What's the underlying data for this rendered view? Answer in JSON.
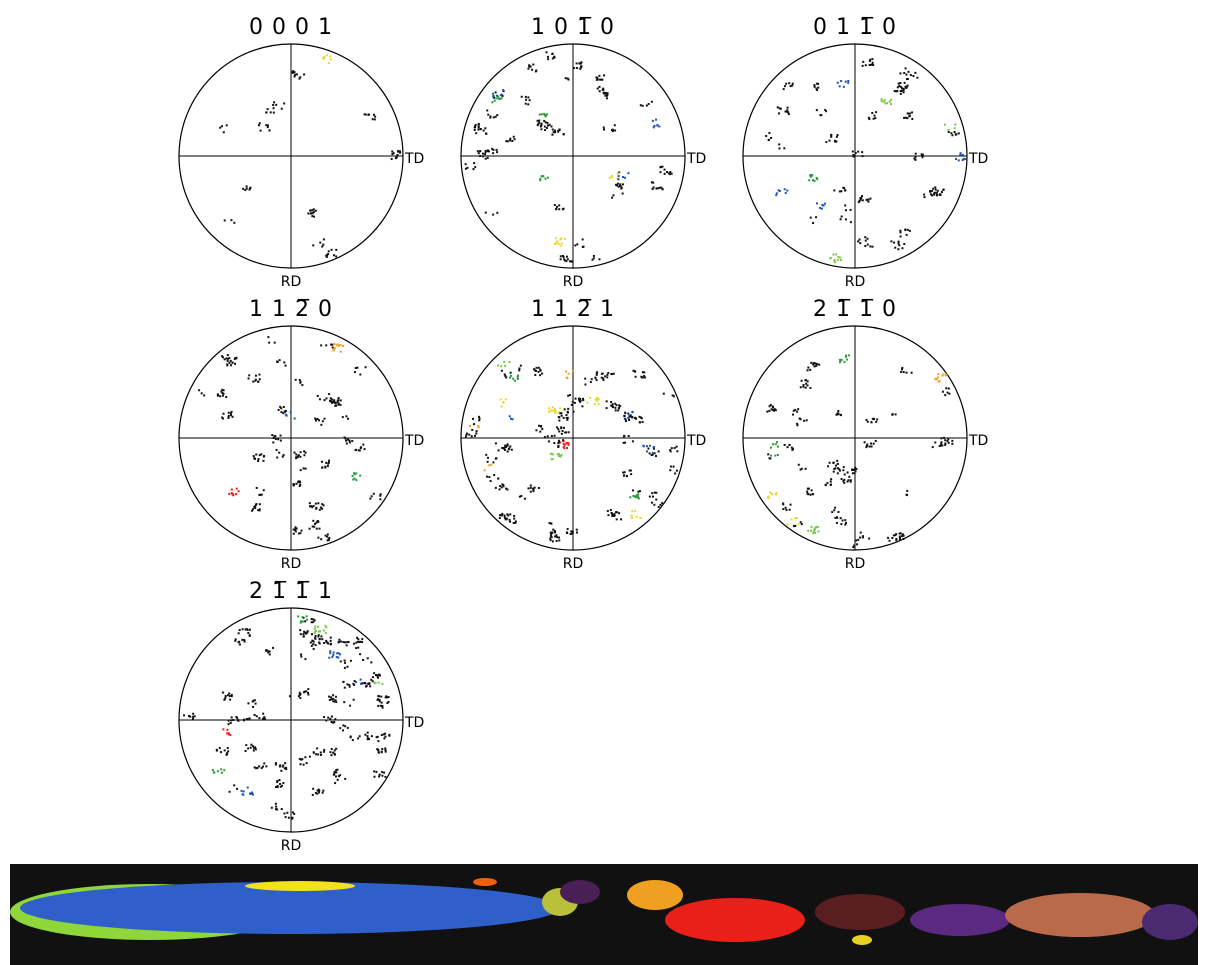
{
  "figures": [
    {
      "title": "0 0 0 1",
      "right": "TD",
      "bottom": "RD"
    },
    {
      "title": "1 0 1̅ 0",
      "right": "TD",
      "bottom": "RD"
    },
    {
      "title": "0 1 1̅ 0",
      "right": "TD",
      "bottom": "RD"
    },
    {
      "title": "1 1 2̅ 0",
      "right": "TD",
      "bottom": "RD"
    },
    {
      "title": "1 1 2̅ 1",
      "right": "TD",
      "bottom": "RD"
    },
    {
      "title": "2 1̅ 1̅ 0",
      "right": "TD",
      "bottom": "RD"
    },
    {
      "title": "2 1̅ 1̅ 1",
      "right": "TD",
      "bottom": "RD"
    }
  ]
}
